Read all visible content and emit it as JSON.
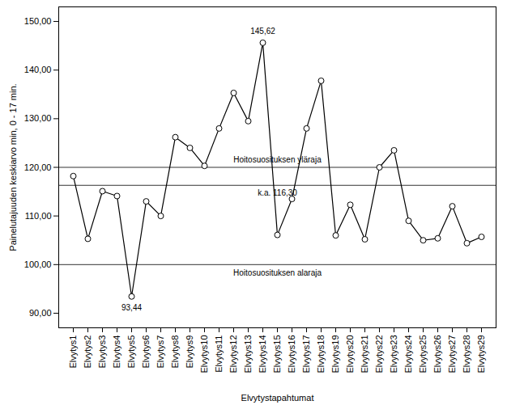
{
  "chart_data": {
    "type": "line",
    "x_label": "Elvytystapahtumat",
    "y_label": "Painelutajuuden keskiarvo min, 0 - 17 min.",
    "categories": [
      "Elvytys1",
      "Elvytys2",
      "Elvytys3",
      "Elvytys4",
      "Elvytys5",
      "Elvytys6",
      "Elvytys7",
      "Elvytys8",
      "Elvytys9",
      "Elvytys10",
      "Elvytys11",
      "Elvytys12",
      "Elvytys13",
      "Elvytys14",
      "Elvytys15",
      "Elvytys16",
      "Elvytys17",
      "Elvytys18",
      "Elvytys19",
      "Elvytys20",
      "Elvytys21",
      "Elvytys22",
      "Elvytys23",
      "Elvytys24",
      "Elvytys25",
      "Elvytys26",
      "Elvytys27",
      "Elvytys28",
      "Elvytys29"
    ],
    "values": [
      118.2,
      105.3,
      115.1,
      114.1,
      93.44,
      113.0,
      110.0,
      126.2,
      124.0,
      120.3,
      128.0,
      135.3,
      129.5,
      145.62,
      106.1,
      113.5,
      128.0,
      137.8,
      106.0,
      112.3,
      105.2,
      120.0,
      123.5,
      109.0,
      105.0,
      105.4,
      112.0,
      104.4,
      105.7
    ],
    "value_labels": [
      null,
      null,
      null,
      null,
      "93,44",
      null,
      null,
      null,
      null,
      null,
      null,
      null,
      null,
      "145,62",
      null,
      null,
      null,
      null,
      null,
      null,
      null,
      null,
      null,
      null,
      null,
      null,
      null,
      null,
      null
    ],
    "color": "#000000",
    "marker": "circle",
    "ylim": [
      87,
      153
    ],
    "yticks": [
      {
        "value": 90,
        "label": "90,00"
      },
      {
        "value": 100,
        "label": "100,00"
      },
      {
        "value": 110,
        "label": "110,00"
      },
      {
        "value": 120,
        "label": "120,00"
      },
      {
        "value": 130,
        "label": "130,00"
      },
      {
        "value": 140,
        "label": "140,00"
      },
      {
        "value": 150,
        "label": "150,00"
      }
    ],
    "annotations": [
      {
        "value": 120,
        "label": "Hoitosuosituksen yläraja"
      },
      {
        "value": 116.3,
        "label": "k.a. 116,30"
      },
      {
        "value": 100,
        "label": "Hoitosuosituksen alaraja"
      }
    ],
    "grid": false
  }
}
